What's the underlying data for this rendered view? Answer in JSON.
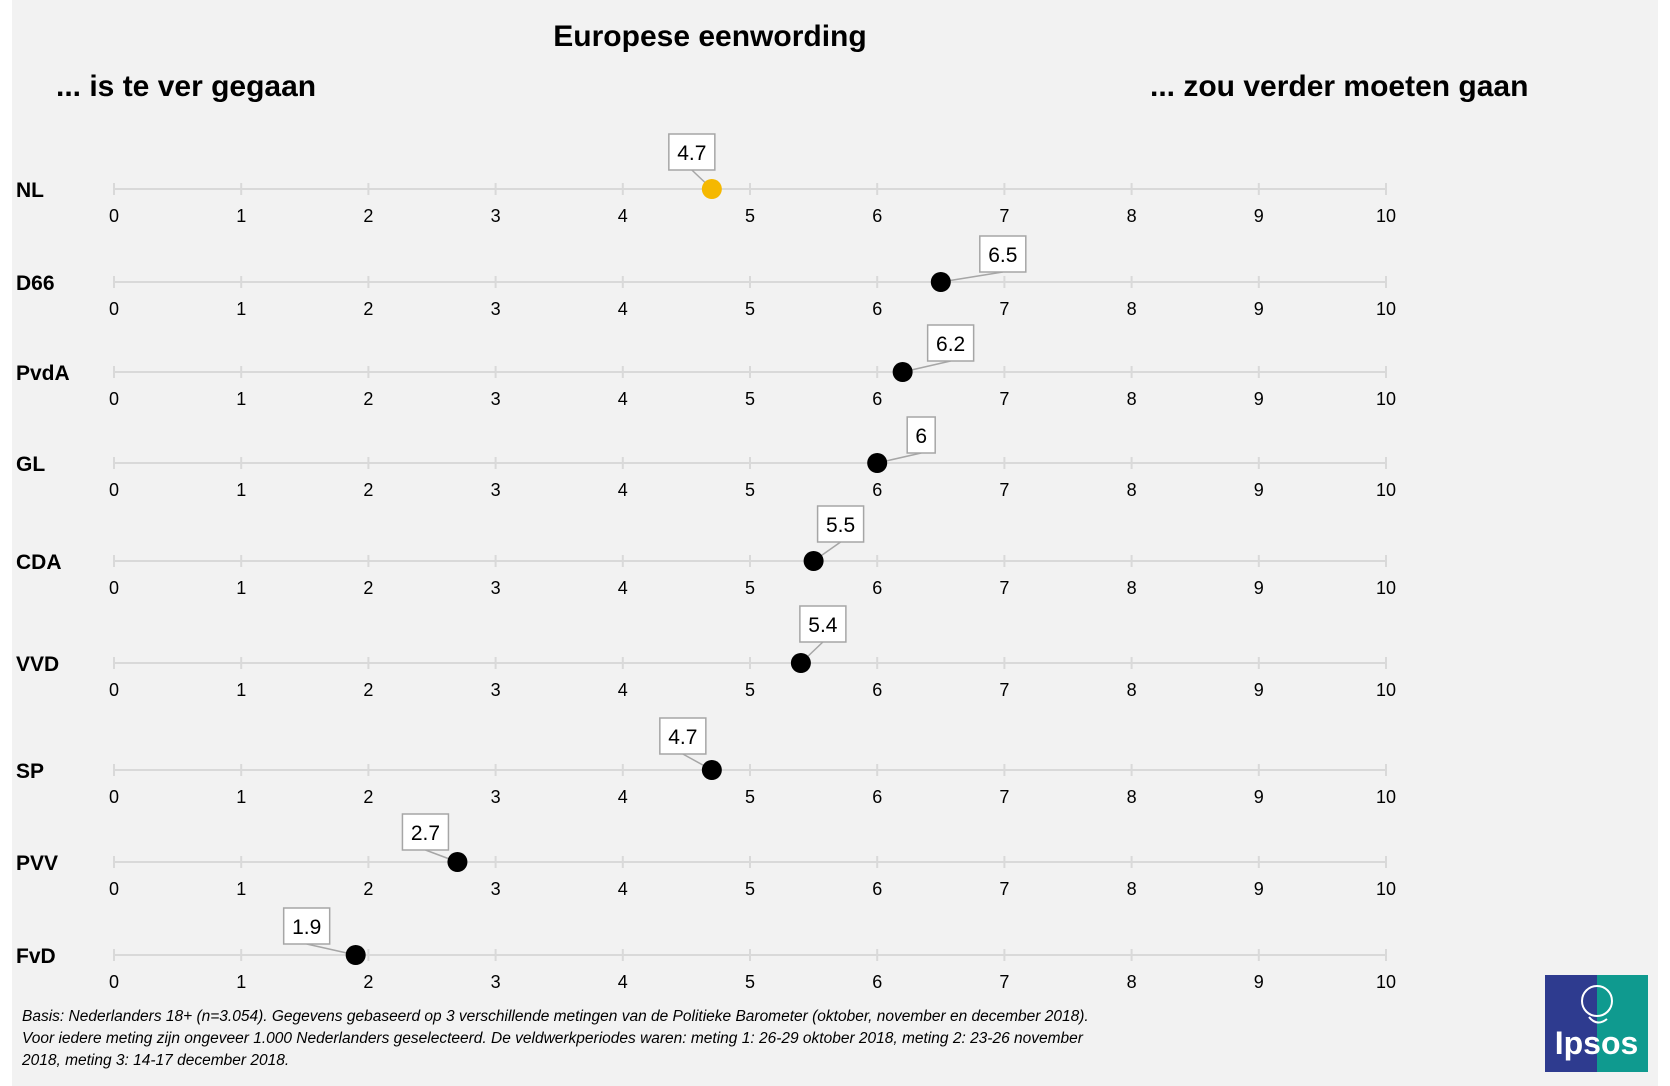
{
  "title": "Europese eenwording",
  "left_label": "... is te ver gegaan",
  "right_label": "... zou verder moeten gaan",
  "footnote": [
    "Basis: Nederlanders 18+ (n=3.054). Gegevens gebaseerd op 3 verschillende metingen van de Politieke Barometer (oktober, november en december 2018).",
    "Voor iedere meting zijn ongeveer 1.000 Nederlanders geselecteerd. De veldwerkperiodes waren: meting 1: 26-29 oktober 2018, meting 2: 23-26 november",
    "2018, meting 3: 14-17 december 2018."
  ],
  "logo": {
    "text": "Ipsos",
    "colors": [
      "#2e3b8f",
      "#0f9a8f"
    ]
  },
  "colors": {
    "highlight": "#f5b800",
    "dot": "#000000",
    "axis": "#d9d9d9",
    "background": "#f2f2f2"
  },
  "chart_data": {
    "type": "scatter",
    "title": "Europese eenwording",
    "xlim": [
      0,
      10
    ],
    "ticks": [
      "0",
      "1",
      "2",
      "3",
      "4",
      "5",
      "6",
      "7",
      "8",
      "9",
      "10"
    ],
    "rows": [
      {
        "label": "NL",
        "value": 4.7,
        "value_label": "4.7",
        "highlight": true
      },
      {
        "label": "D66",
        "value": 6.5,
        "value_label": "6.5"
      },
      {
        "label": "PvdA",
        "value": 6.2,
        "value_label": "6.2"
      },
      {
        "label": "GL",
        "value": 6.0,
        "value_label": "6"
      },
      {
        "label": "CDA",
        "value": 5.5,
        "value_label": "5.5"
      },
      {
        "label": "VVD",
        "value": 5.4,
        "value_label": "5.4"
      },
      {
        "label": "SP",
        "value": 4.7,
        "value_label": "4.7"
      },
      {
        "label": "PVV",
        "value": 2.7,
        "value_label": "2.7"
      },
      {
        "label": "FvD",
        "value": 1.9,
        "value_label": "1.9"
      }
    ]
  }
}
